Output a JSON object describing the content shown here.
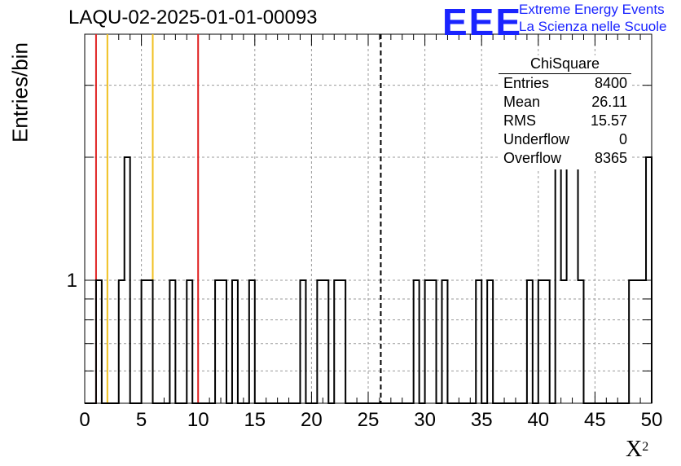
{
  "chart_data": {
    "type": "histogram",
    "title": "LAQU-02-2025-01-01-00093",
    "xlabel": "X",
    "xlabel_superscript": "2",
    "ylabel": "Entries/bin",
    "xlim": [
      0,
      50
    ],
    "ylog": true,
    "ylim": [
      0.5,
      4
    ],
    "x_ticks": [
      "0",
      "5",
      "10",
      "15",
      "20",
      "25",
      "30",
      "35",
      "40",
      "45",
      "50"
    ],
    "y_ticks": [
      "1"
    ],
    "grid": true,
    "bin_width": 0.5,
    "bins": [
      {
        "x": 1.0,
        "count": 1
      },
      {
        "x": 3.0,
        "count": 1
      },
      {
        "x": 3.5,
        "count": 2
      },
      {
        "x": 5.0,
        "count": 1
      },
      {
        "x": 5.5,
        "count": 1
      },
      {
        "x": 7.5,
        "count": 1
      },
      {
        "x": 9.0,
        "count": 1
      },
      {
        "x": 11.5,
        "count": 1
      },
      {
        "x": 12.0,
        "count": 1
      },
      {
        "x": 13.0,
        "count": 1
      },
      {
        "x": 14.5,
        "count": 1
      },
      {
        "x": 19.0,
        "count": 1
      },
      {
        "x": 20.5,
        "count": 1
      },
      {
        "x": 21.0,
        "count": 1
      },
      {
        "x": 22.0,
        "count": 1
      },
      {
        "x": 22.5,
        "count": 1
      },
      {
        "x": 29.0,
        "count": 1
      },
      {
        "x": 30.0,
        "count": 1
      },
      {
        "x": 30.5,
        "count": 1
      },
      {
        "x": 31.5,
        "count": 1
      },
      {
        "x": 34.5,
        "count": 1
      },
      {
        "x": 35.5,
        "count": 1
      },
      {
        "x": 39.0,
        "count": 1
      },
      {
        "x": 40.0,
        "count": 1
      },
      {
        "x": 40.5,
        "count": 1
      },
      {
        "x": 41.5,
        "count": 2
      },
      {
        "x": 42.0,
        "count": 1
      },
      {
        "x": 42.5,
        "count": 2
      },
      {
        "x": 43.0,
        "count": 2
      },
      {
        "x": 43.5,
        "count": 1
      },
      {
        "x": 48.0,
        "count": 1
      },
      {
        "x": 48.5,
        "count": 1
      },
      {
        "x": 49.0,
        "count": 1
      },
      {
        "x": 49.5,
        "count": 2
      }
    ],
    "vertical_lines": [
      {
        "x": 1,
        "color": "#e02020",
        "style": "solid"
      },
      {
        "x": 2,
        "color": "#f0c020",
        "style": "solid"
      },
      {
        "x": 6,
        "color": "#f0c020",
        "style": "solid"
      },
      {
        "x": 10,
        "color": "#e02020",
        "style": "solid"
      },
      {
        "x": 26.11,
        "color": "#000000",
        "style": "dashed"
      }
    ],
    "stats_box": {
      "title": "ChiSquare",
      "rows": [
        {
          "key": "Entries",
          "value": "8400"
        },
        {
          "key": "Mean",
          "value": "26.11"
        },
        {
          "key": "RMS",
          "value": "15.57"
        },
        {
          "key": "Underflow",
          "value": "0"
        },
        {
          "key": "Overflow",
          "value": "8365"
        }
      ]
    }
  },
  "logo": {
    "word": "EEE",
    "line1": "Extreme Energy Events",
    "line2": "La Scienza nelle Scuole",
    "color": "#1a24ff"
  }
}
